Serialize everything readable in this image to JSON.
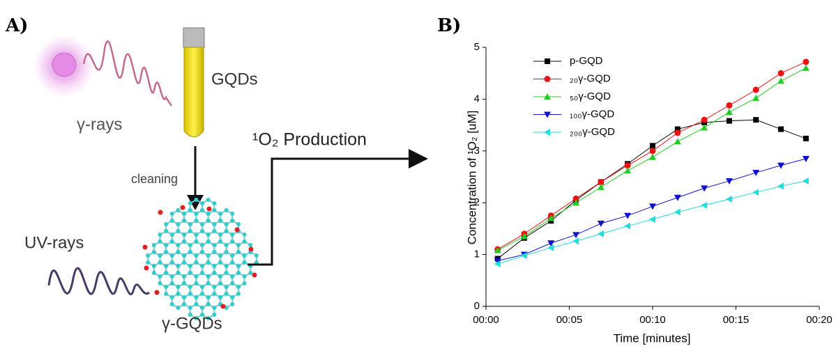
{
  "diagram": {
    "panel_label": "A)",
    "source_label": "γ-rays",
    "vial_label": "GQDs",
    "step_label": "cleaning",
    "uv_label": "UV-rays",
    "product_label": "γ-GQDs",
    "output_label": "¹O₂ Production"
  },
  "chart_data": {
    "type": "line",
    "panel_label": "B)",
    "x_label": "Time [minutes]",
    "y_label": "Concentration of ¹O₂ [uM]",
    "x": [
      0.7,
      2.3,
      3.9,
      5.4,
      6.9,
      8.5,
      10.0,
      11.5,
      13.1,
      14.6,
      16.2,
      17.7,
      19.2
    ],
    "series": [
      {
        "name": "p-GQD",
        "color": "#000000",
        "marker": "square",
        "values": [
          0.92,
          1.32,
          1.65,
          2.05,
          2.4,
          2.75,
          3.1,
          3.42,
          3.55,
          3.58,
          3.6,
          3.42,
          3.24
        ]
      },
      {
        "name": "₂₀γ-GQD",
        "color": "#ee1111",
        "marker": "circle",
        "values": [
          1.1,
          1.4,
          1.75,
          2.08,
          2.4,
          2.72,
          3.0,
          3.35,
          3.6,
          3.88,
          4.18,
          4.5,
          4.72
        ]
      },
      {
        "name": "₅₀γ-GQD",
        "color": "#22cc22",
        "marker": "triangle-up",
        "values": [
          1.08,
          1.35,
          1.7,
          2.0,
          2.3,
          2.62,
          2.88,
          3.18,
          3.45,
          3.75,
          4.02,
          4.35,
          4.6
        ]
      },
      {
        "name": "₁₀₀γ-GQD",
        "color": "#1111cc",
        "marker": "triangle-down",
        "values": [
          0.88,
          1.0,
          1.22,
          1.38,
          1.6,
          1.75,
          1.93,
          2.1,
          2.28,
          2.42,
          2.58,
          2.72,
          2.85
        ]
      },
      {
        "name": "₂₀₀γ-GQD",
        "color": "#22dddd",
        "marker": "triangle-left",
        "values": [
          0.82,
          0.98,
          1.13,
          1.26,
          1.4,
          1.55,
          1.68,
          1.82,
          1.95,
          2.07,
          2.2,
          2.32,
          2.42
        ]
      }
    ],
    "xlim": [
      0,
      20
    ],
    "xticks": [
      {
        "value": 0,
        "label": "00:00"
      },
      {
        "value": 5,
        "label": "00:05"
      },
      {
        "value": 10,
        "label": "00:10"
      },
      {
        "value": 15,
        "label": "00:15"
      },
      {
        "value": 20,
        "label": "00:20"
      }
    ],
    "ylim": [
      0,
      5
    ],
    "yticks": [
      0,
      1,
      2,
      3,
      4,
      5
    ],
    "legend": "upper-left"
  }
}
